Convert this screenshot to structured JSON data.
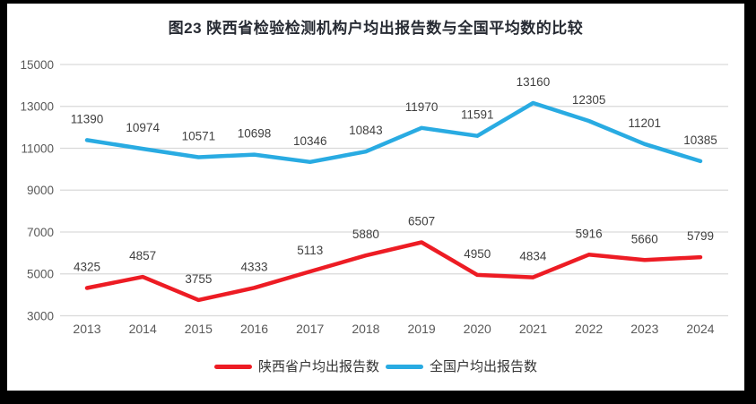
{
  "title": "图23 陕西省检验检测机构户均出报告数与全国平均数的比较",
  "chart_data": {
    "type": "line",
    "title": "图23 陕西省检验检测机构户均出报告数与全国平均数的比较",
    "categories": [
      "2013",
      "2014",
      "2015",
      "2016",
      "2017",
      "2018",
      "2019",
      "2020",
      "2021",
      "2022",
      "2023",
      "2024"
    ],
    "series": [
      {
        "name": "陕西省户均出报告数",
        "color": "#ED1C24",
        "values": [
          4325,
          4857,
          3755,
          4333,
          5113,
          5880,
          6507,
          4950,
          4834,
          5916,
          5660,
          5799
        ]
      },
      {
        "name": "全国户均出报告数",
        "color": "#29ABE2",
        "values": [
          11390,
          10974,
          10571,
          10698,
          10346,
          10843,
          11970,
          11591,
          13160,
          12305,
          11201,
          10385
        ]
      }
    ],
    "ylim": [
      3000,
      15000
    ],
    "y_ticks": [
      3000,
      5000,
      7000,
      9000,
      11000,
      13000,
      15000
    ],
    "grid": "horizontal",
    "legend_position": "bottom",
    "data_labels": true,
    "colors": {
      "gridline": "#D9D9D9",
      "axis_text": "#595959",
      "data_label_text": "#3F3F3F",
      "legend_text": "#333333",
      "frame_border": "#000000",
      "background": "#FFFFFF"
    }
  }
}
